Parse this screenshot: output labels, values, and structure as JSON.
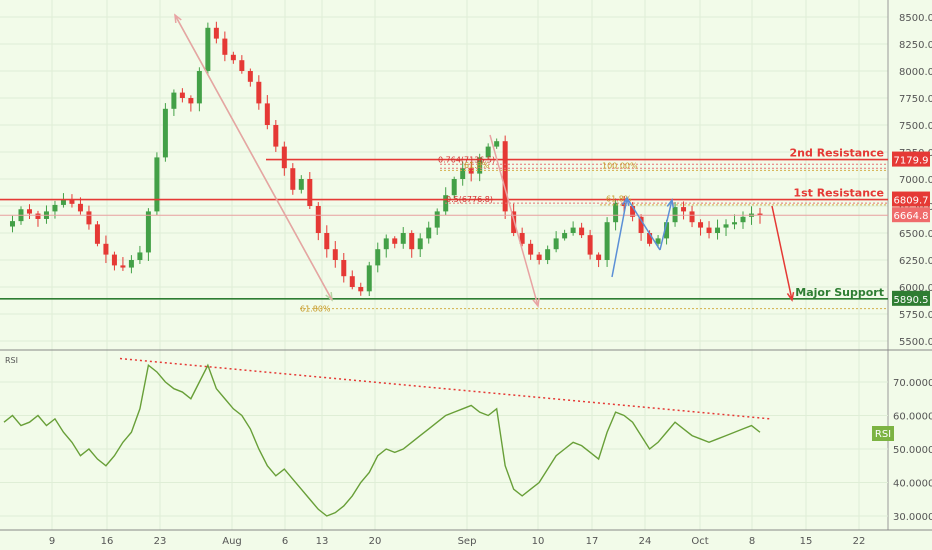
{
  "chart_data": [
    {
      "type": "candlestick",
      "title": "",
      "y_axis": {
        "range": [
          5400,
          8600
        ],
        "ticks": [
          "8500.0",
          "8250.0",
          "8000.0",
          "7750.0",
          "7500.0",
          "7250.0",
          "7000.0",
          "6750.0",
          "6500.0",
          "6250.0",
          "6000.0",
          "5750.0",
          "5500.0"
        ]
      },
      "x_axis": {
        "tick_labels": [
          "9",
          "16",
          "23",
          "Aug",
          "6",
          "13",
          "20",
          "Sep",
          "10",
          "17",
          "24",
          "Oct",
          "8",
          "15",
          "22"
        ]
      },
      "horizontal_levels": [
        {
          "label": "2nd Resistance",
          "value": 7179.9,
          "tag": "7179.9",
          "color": "#e53935"
        },
        {
          "label": "1st Resistance",
          "value": 6809.7,
          "tag": "6809.7",
          "color": "#e53935"
        },
        {
          "label": "Major Support",
          "value": 5890.5,
          "tag": "5890.5",
          "color": "#2e7d32"
        }
      ],
      "last_price_tag": "6664.8",
      "fibonacci_labels": [
        "0.764(7136.5)",
        "0.5(6776.8)",
        "100.00%",
        "61.80%",
        "61.8%",
        "61.8%"
      ],
      "projection": {
        "from": 6750,
        "to": 5880,
        "color": "#e53935"
      },
      "price_path": [
        6560,
        6610,
        6720,
        6680,
        6630,
        6700,
        6760,
        6810,
        6770,
        6700,
        6580,
        6400,
        6300,
        6200,
        6180,
        6250,
        6320,
        6700,
        7200,
        7650,
        7800,
        7750,
        7700,
        8000,
        8400,
        8300,
        8150,
        8100,
        8000,
        7900,
        7700,
        7500,
        7300,
        7100,
        6900,
        7000,
        6750,
        6500,
        6350,
        6250,
        6100,
        6000,
        5960,
        6200,
        6350,
        6450,
        6400,
        6500,
        6350,
        6450,
        6550,
        6700,
        6850,
        7000,
        7100,
        7050,
        7200,
        7300,
        7350,
        6700,
        6500,
        6400,
        6300,
        6250,
        6350,
        6450,
        6500,
        6550,
        6480,
        6300,
        6250,
        6600,
        6780,
        6750,
        6650,
        6500,
        6400,
        6450,
        6600,
        6740,
        6700,
        6600,
        6550,
        6500,
        6550,
        6580,
        6600,
        6650,
        6680,
        6665
      ]
    },
    {
      "type": "line",
      "title": "RSI",
      "y_axis": {
        "range": [
          26,
          80
        ],
        "ticks": [
          "70.0000",
          "60.0000",
          "50.0000",
          "40.0000",
          "30.0000"
        ]
      },
      "last_value_tag": "RSI",
      "series": [
        {
          "values": [
            58,
            60,
            57,
            58,
            60,
            57,
            59,
            55,
            52,
            48,
            50,
            47,
            45,
            48,
            52,
            55,
            62,
            75,
            73,
            70,
            68,
            67,
            65,
            70,
            75,
            68,
            65,
            62,
            60,
            56,
            50,
            45,
            42,
            44,
            41,
            38,
            35,
            32,
            30,
            31,
            33,
            36,
            40,
            43,
            48,
            50,
            49,
            50,
            52,
            54,
            56,
            58,
            60,
            61,
            62,
            63,
            61,
            60,
            62,
            45,
            38,
            36,
            38,
            40,
            44,
            48,
            50,
            52,
            51,
            49,
            47,
            55,
            61,
            60,
            58,
            54,
            50,
            52,
            55,
            58,
            56,
            54,
            53,
            52,
            53,
            54,
            55,
            56,
            57,
            55
          ]
        }
      ],
      "trendline": {
        "from": 77,
        "to": 59,
        "color": "#e53935"
      }
    }
  ]
}
